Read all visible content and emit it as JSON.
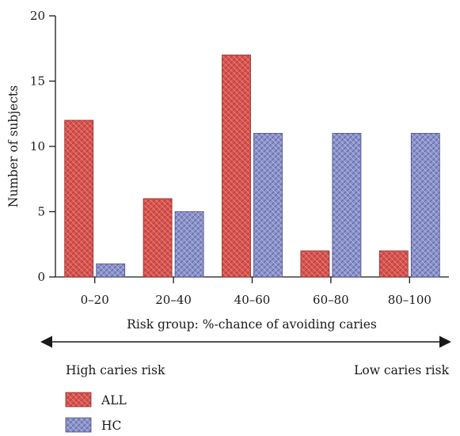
{
  "chart_data": {
    "type": "bar",
    "categories": [
      "0–20",
      "20–40",
      "40–60",
      "60–80",
      "80–100"
    ],
    "series": [
      {
        "name": "ALL",
        "values": [
          12,
          6,
          17,
          2,
          2
        ],
        "color": "#d9534f"
      },
      {
        "name": "HC",
        "values": [
          1,
          5,
          11,
          11,
          11
        ],
        "color": "#8c93c9"
      }
    ],
    "title": "",
    "xlabel": "Risk group: %-chance of avoiding caries",
    "ylabel": "Number of subjects",
    "ylim": [
      0,
      20
    ],
    "yticks": [
      0,
      5,
      10,
      15,
      20
    ],
    "grid": false,
    "legend_placement": "bottom-left"
  },
  "annotations": {
    "left_label": "High caries risk",
    "right_label": "Low caries risk"
  },
  "colors": {
    "all_fill": "#d9534f",
    "all_hatch": "#b23a36",
    "hc_fill": "#8c93c9",
    "hc_hatch": "#5a62a8",
    "axis": "#1a1a1a"
  }
}
